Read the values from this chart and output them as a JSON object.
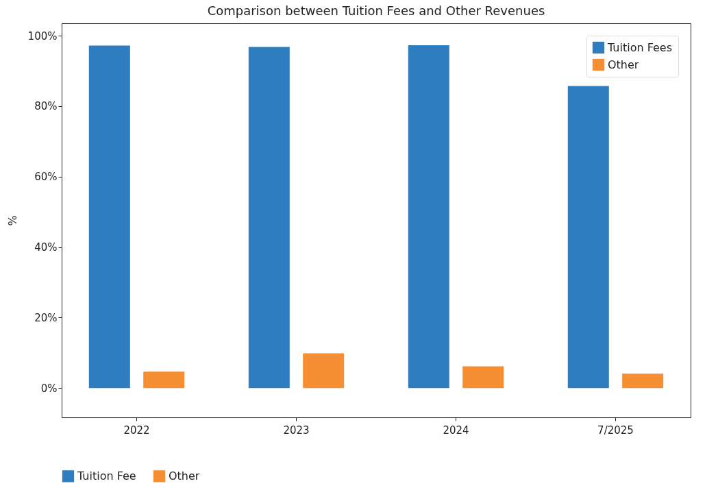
{
  "chart_data": {
    "type": "bar",
    "title": "Comparison between Tuition Fees and Other Revenues",
    "ylabel": "%",
    "categories": [
      "2022",
      "2023",
      "2024",
      "7/2025"
    ],
    "series": [
      {
        "name": "Tuition Fees",
        "color": "#2d7dbf",
        "values": [
          97.2,
          96.8,
          97.3,
          85.7
        ]
      },
      {
        "name": "Other",
        "color": "#f68f33",
        "values": [
          4.7,
          9.9,
          6.2,
          4.1
        ]
      }
    ],
    "ylim": [
      -8.3,
      103.5
    ],
    "yticks": [
      {
        "value": 0,
        "label": "0%"
      },
      {
        "value": 20,
        "label": "20%"
      },
      {
        "value": 40,
        "label": "40%"
      },
      {
        "value": 60,
        "label": "60%"
      },
      {
        "value": 80,
        "label": "80%"
      },
      {
        "value": 100,
        "label": "100%"
      }
    ],
    "legend": "top right",
    "grid": false,
    "annotations": [
      "Tuition Fee",
      "Other"
    ]
  }
}
